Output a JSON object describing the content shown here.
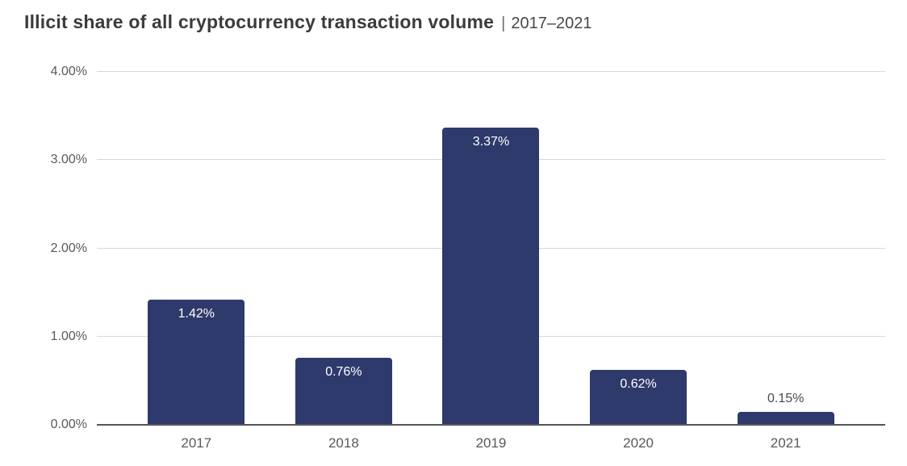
{
  "header": {
    "title": "Illicit share of all cryptocurrency transaction volume",
    "separator": "|",
    "period": "2017–2021"
  },
  "chart_data": {
    "type": "bar",
    "title": "Illicit share of all cryptocurrency transaction volume",
    "subtitle": "2017–2021",
    "categories": [
      "2017",
      "2018",
      "2019",
      "2020",
      "2021"
    ],
    "values": [
      1.42,
      0.76,
      3.37,
      0.62,
      0.15
    ],
    "value_labels": [
      "1.42%",
      "0.76%",
      "3.37%",
      "0.62%",
      "0.15%"
    ],
    "xlabel": "",
    "ylabel": "",
    "ylim": [
      0,
      4
    ],
    "y_ticks": [
      0,
      1,
      2,
      3,
      4
    ],
    "y_tick_labels": [
      "0.00%",
      "1.00%",
      "2.00%",
      "3.00%",
      "4.00%"
    ],
    "grid": true,
    "legend": false,
    "label_placement_rule": "inside bar top if bar tall enough, otherwise above bar",
    "colors": {
      "bar": "#2e3a6b",
      "grid_line": "#d9d9d9",
      "axis_line": "#55565a",
      "tick_label": "#595959",
      "title": "#3b3b3b",
      "label_inside": "#ffffff",
      "label_outside": "#4a4a4a",
      "background": "#ffffff"
    }
  }
}
